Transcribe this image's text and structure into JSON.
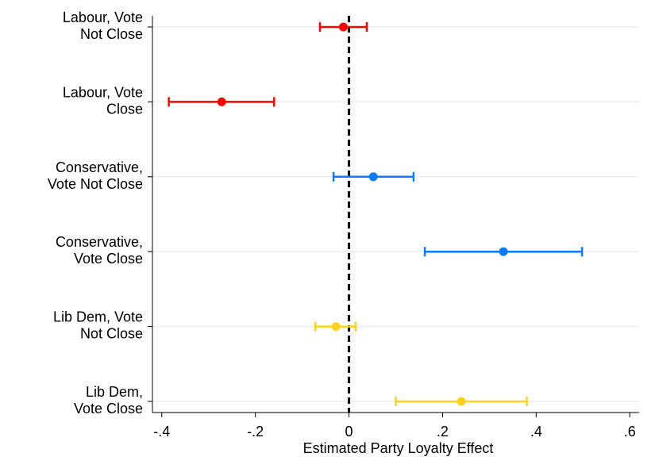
{
  "chart_data": {
    "type": "scatter",
    "subtype": "coefficient-plot",
    "title": "",
    "xlabel": "Estimated Party Loyalty Effect",
    "ylabel": "",
    "xlim": [
      -0.42,
      0.62
    ],
    "xticks": [
      {
        "value": -0.4,
        "label": "-.4"
      },
      {
        "value": -0.2,
        "label": "-.2"
      },
      {
        "value": 0,
        "label": "0"
      },
      {
        "value": 0.2,
        "label": ".2"
      },
      {
        "value": 0.4,
        "label": ".4"
      },
      {
        "value": 0.6,
        "label": ".6"
      }
    ],
    "reference_line": {
      "x": 0,
      "style": "dashed",
      "color": "#000000"
    },
    "grid": "horizontal",
    "legend": "none",
    "points": [
      {
        "label_lines": [
          "Labour, Vote",
          "Not Close"
        ],
        "estimate": -0.012,
        "ci_low": -0.062,
        "ci_high": 0.038,
        "color": "#ff0000"
      },
      {
        "label_lines": [
          "Labour, Vote",
          "Close"
        ],
        "estimate": -0.272,
        "ci_low": -0.385,
        "ci_high": -0.16,
        "color": "#ff0000"
      },
      {
        "label_lines": [
          "Conservative,",
          "Vote Not Close"
        ],
        "estimate": 0.052,
        "ci_low": -0.033,
        "ci_high": 0.138,
        "color": "#0a7bff"
      },
      {
        "label_lines": [
          "Conservative,",
          "Vote Close"
        ],
        "estimate": 0.33,
        "ci_low": 0.162,
        "ci_high": 0.498,
        "color": "#0a7bff"
      },
      {
        "label_lines": [
          "Lib Dem, Vote",
          "Not Close"
        ],
        "estimate": -0.028,
        "ci_low": -0.072,
        "ci_high": 0.014,
        "color": "#ffd21f"
      },
      {
        "label_lines": [
          "Lib Dem,",
          "Vote Close"
        ],
        "estimate": 0.24,
        "ci_low": 0.1,
        "ci_high": 0.38,
        "color": "#ffd21f"
      }
    ]
  }
}
